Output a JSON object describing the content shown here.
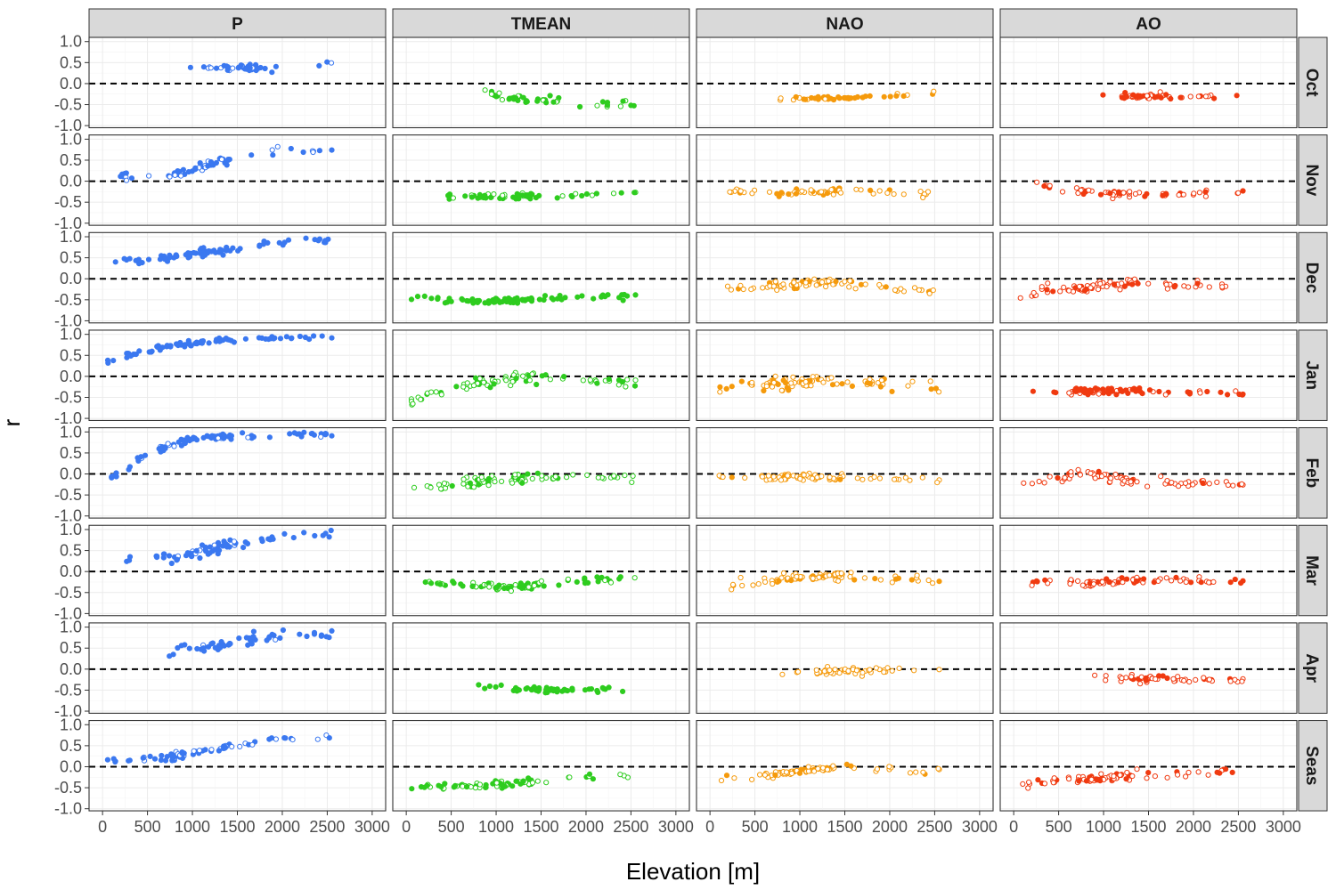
{
  "chart_data": {
    "type": "scatter",
    "layout": "facet_grid",
    "xlabel": "Elevation [m]",
    "ylabel": "r",
    "xlim": [
      -150,
      3150
    ],
    "ylim": [
      -1.05,
      1.1
    ],
    "x_ticks": [
      0,
      500,
      1000,
      1500,
      2000,
      2500,
      3000
    ],
    "y_ticks": [
      -1.0,
      -0.5,
      0.0,
      0.5,
      1.0
    ],
    "x_tick_labels": [
      "0",
      "500",
      "1000",
      "1500",
      "2000",
      "2500",
      "3000"
    ],
    "y_tick_labels": [
      "-1.0",
      "-0.5",
      "0.0",
      "0.5",
      "1.0"
    ],
    "reference_line": {
      "y": 0,
      "style": "dashed"
    },
    "grid": true,
    "point_style": {
      "filled": "significant",
      "open": "not significant"
    },
    "columns": [
      "P",
      "TMEAN",
      "NAO",
      "AO"
    ],
    "rows": [
      "Oct",
      "Nov",
      "Dec",
      "Jan",
      "Feb",
      "Mar",
      "Apr",
      "Seas"
    ],
    "colors": {
      "P": "#3b78f0",
      "TMEAN": "#2ecc1f",
      "NAO": "#f59a0c",
      "AO": "#f03a10"
    },
    "series": [
      {
        "col": "P",
        "row": "Oct",
        "trend": [
          [
            850,
            0.38
          ],
          [
            1900,
            0.38
          ],
          [
            2550,
            0.5
          ]
        ],
        "spread": 0.07,
        "x_range": [
          830,
          2550
        ],
        "n": 40,
        "open_frac": 0.25
      },
      {
        "col": "P",
        "row": "Nov",
        "trend": [
          [
            180,
            0.1
          ],
          [
            800,
            0.15
          ],
          [
            1300,
            0.45
          ],
          [
            1900,
            0.72
          ],
          [
            2550,
            0.75
          ]
        ],
        "spread": 0.08,
        "x_range": [
          180,
          2550
        ],
        "n": 60,
        "open_frac": 0.3
      },
      {
        "col": "P",
        "row": "Dec",
        "trend": [
          [
            50,
            0.42
          ],
          [
            700,
            0.5
          ],
          [
            1300,
            0.65
          ],
          [
            1900,
            0.85
          ],
          [
            2550,
            0.9
          ]
        ],
        "spread": 0.08,
        "x_range": [
          50,
          2550
        ],
        "n": 80,
        "open_frac": 0.0
      },
      {
        "col": "P",
        "row": "Jan",
        "trend": [
          [
            50,
            0.35
          ],
          [
            250,
            0.5
          ],
          [
            700,
            0.72
          ],
          [
            1300,
            0.85
          ],
          [
            2550,
            0.95
          ]
        ],
        "spread": 0.05,
        "x_range": [
          50,
          2550
        ],
        "n": 85,
        "open_frac": 0.0
      },
      {
        "col": "P",
        "row": "Feb",
        "trend": [
          [
            80,
            -0.1
          ],
          [
            250,
            0.05
          ],
          [
            500,
            0.5
          ],
          [
            1000,
            0.85
          ],
          [
            2550,
            0.95
          ]
        ],
        "spread": 0.06,
        "x_range": [
          80,
          2550
        ],
        "n": 85,
        "open_frac": 0.1
      },
      {
        "col": "P",
        "row": "Mar",
        "trend": [
          [
            200,
            0.3
          ],
          [
            900,
            0.35
          ],
          [
            1300,
            0.6
          ],
          [
            1900,
            0.8
          ],
          [
            2550,
            0.88
          ]
        ],
        "spread": 0.1,
        "x_range": [
          200,
          2550
        ],
        "n": 75,
        "open_frac": 0.12
      },
      {
        "col": "P",
        "row": "Apr",
        "trend": [
          [
            700,
            0.4
          ],
          [
            1300,
            0.55
          ],
          [
            1900,
            0.78
          ],
          [
            2550,
            0.82
          ]
        ],
        "spread": 0.1,
        "x_range": [
          700,
          2550
        ],
        "n": 55,
        "open_frac": 0.08
      },
      {
        "col": "P",
        "row": "Seas",
        "trend": [
          [
            50,
            0.1
          ],
          [
            800,
            0.25
          ],
          [
            1300,
            0.45
          ],
          [
            1900,
            0.65
          ],
          [
            2550,
            0.75
          ]
        ],
        "spread": 0.07,
        "x_range": [
          50,
          2550
        ],
        "n": 75,
        "open_frac": 0.25
      },
      {
        "col": "TMEAN",
        "row": "Oct",
        "trend": [
          [
            800,
            -0.1
          ],
          [
            1100,
            -0.35
          ],
          [
            2550,
            -0.5
          ]
        ],
        "spread": 0.08,
        "x_range": [
          800,
          2550
        ],
        "n": 45,
        "open_frac": 0.3
      },
      {
        "col": "TMEAN",
        "row": "Nov",
        "trend": [
          [
            200,
            -0.15
          ],
          [
            300,
            -0.3
          ],
          [
            600,
            -0.38
          ],
          [
            2550,
            -0.3
          ]
        ],
        "spread": 0.07,
        "x_range": [
          200,
          2550
        ],
        "n": 60,
        "open_frac": 0.3
      },
      {
        "col": "TMEAN",
        "row": "Dec",
        "trend": [
          [
            50,
            -0.45
          ],
          [
            800,
            -0.55
          ],
          [
            1400,
            -0.5
          ],
          [
            2550,
            -0.4
          ]
        ],
        "spread": 0.06,
        "x_range": [
          50,
          2550
        ],
        "n": 80,
        "open_frac": 0.0
      },
      {
        "col": "TMEAN",
        "row": "Jan",
        "trend": [
          [
            50,
            -0.6
          ],
          [
            250,
            -0.4
          ],
          [
            800,
            -0.15
          ],
          [
            1400,
            0.0
          ],
          [
            2550,
            -0.15
          ]
        ],
        "spread": 0.12,
        "x_range": [
          50,
          2550
        ],
        "n": 80,
        "open_frac": 0.7
      },
      {
        "col": "TMEAN",
        "row": "Feb",
        "trend": [
          [
            50,
            -0.45
          ],
          [
            250,
            -0.3
          ],
          [
            700,
            -0.2
          ],
          [
            1400,
            -0.1
          ],
          [
            2550,
            -0.05
          ]
        ],
        "spread": 0.1,
        "x_range": [
          50,
          2550
        ],
        "n": 80,
        "open_frac": 0.7
      },
      {
        "col": "TMEAN",
        "row": "Mar",
        "trend": [
          [
            200,
            -0.25
          ],
          [
            700,
            -0.35
          ],
          [
            1400,
            -0.35
          ],
          [
            2550,
            -0.1
          ]
        ],
        "spread": 0.07,
        "x_range": [
          200,
          2550
        ],
        "n": 80,
        "open_frac": 0.35
      },
      {
        "col": "TMEAN",
        "row": "Apr",
        "trend": [
          [
            800,
            -0.4
          ],
          [
            1200,
            -0.5
          ],
          [
            2550,
            -0.5
          ]
        ],
        "spread": 0.06,
        "x_range": [
          800,
          2550
        ],
        "n": 50,
        "open_frac": 0.0
      },
      {
        "col": "TMEAN",
        "row": "Seas",
        "trend": [
          [
            50,
            -0.5
          ],
          [
            800,
            -0.45
          ],
          [
            1500,
            -0.35
          ],
          [
            2550,
            -0.2
          ]
        ],
        "spread": 0.07,
        "x_range": [
          50,
          2550
        ],
        "n": 75,
        "open_frac": 0.5
      },
      {
        "col": "NAO",
        "row": "Oct",
        "trend": [
          [
            750,
            -0.35
          ],
          [
            1500,
            -0.35
          ],
          [
            2550,
            -0.25
          ]
        ],
        "spread": 0.04,
        "x_range": [
          750,
          2550
        ],
        "n": 45,
        "open_frac": 0.35
      },
      {
        "col": "NAO",
        "row": "Nov",
        "trend": [
          [
            180,
            -0.2
          ],
          [
            800,
            -0.3
          ],
          [
            1400,
            -0.22
          ],
          [
            2550,
            -0.3
          ]
        ],
        "spread": 0.06,
        "x_range": [
          180,
          2550
        ],
        "n": 60,
        "open_frac": 0.75
      },
      {
        "col": "NAO",
        "row": "Dec",
        "trend": [
          [
            50,
            -0.3
          ],
          [
            800,
            -0.15
          ],
          [
            1400,
            -0.1
          ],
          [
            2550,
            -0.3
          ]
        ],
        "spread": 0.08,
        "x_range": [
          50,
          2550
        ],
        "n": 80,
        "open_frac": 0.75
      },
      {
        "col": "NAO",
        "row": "Jan",
        "trend": [
          [
            50,
            -0.3
          ],
          [
            800,
            -0.15
          ],
          [
            1400,
            -0.1
          ],
          [
            2550,
            -0.25
          ]
        ],
        "spread": 0.12,
        "x_range": [
          50,
          2550
        ],
        "n": 80,
        "open_frac": 0.7
      },
      {
        "col": "NAO",
        "row": "Feb",
        "trend": [
          [
            50,
            -0.05
          ],
          [
            1400,
            -0.1
          ],
          [
            2550,
            -0.15
          ]
        ],
        "spread": 0.07,
        "x_range": [
          50,
          2550
        ],
        "n": 80,
        "open_frac": 0.9
      },
      {
        "col": "NAO",
        "row": "Mar",
        "trend": [
          [
            200,
            -0.35
          ],
          [
            800,
            -0.2
          ],
          [
            1400,
            -0.1
          ],
          [
            2550,
            -0.2
          ]
        ],
        "spread": 0.08,
        "x_range": [
          200,
          2550
        ],
        "n": 80,
        "open_frac": 0.85
      },
      {
        "col": "NAO",
        "row": "Apr",
        "trend": [
          [
            800,
            -0.05
          ],
          [
            1400,
            -0.05
          ],
          [
            2550,
            0.0
          ]
        ],
        "spread": 0.07,
        "x_range": [
          800,
          2550
        ],
        "n": 50,
        "open_frac": 1.0
      },
      {
        "col": "NAO",
        "row": "Seas",
        "trend": [
          [
            50,
            -0.35
          ],
          [
            800,
            -0.15
          ],
          [
            1400,
            -0.05
          ],
          [
            2550,
            -0.1
          ]
        ],
        "spread": 0.08,
        "x_range": [
          50,
          2550
        ],
        "n": 75,
        "open_frac": 0.8
      },
      {
        "col": "AO",
        "row": "Oct",
        "trend": [
          [
            850,
            -0.25
          ],
          [
            1400,
            -0.32
          ],
          [
            2550,
            -0.28
          ]
        ],
        "spread": 0.05,
        "x_range": [
          850,
          2550
        ],
        "n": 45,
        "open_frac": 0.5
      },
      {
        "col": "AO",
        "row": "Nov",
        "trend": [
          [
            180,
            0.0
          ],
          [
            500,
            -0.2
          ],
          [
            1400,
            -0.3
          ],
          [
            2550,
            -0.3
          ]
        ],
        "spread": 0.06,
        "x_range": [
          180,
          2550
        ],
        "n": 60,
        "open_frac": 0.65
      },
      {
        "col": "AO",
        "row": "Dec",
        "trend": [
          [
            50,
            -0.5
          ],
          [
            250,
            -0.3
          ],
          [
            800,
            -0.2
          ],
          [
            1400,
            -0.1
          ],
          [
            2550,
            -0.2
          ]
        ],
        "spread": 0.08,
        "x_range": [
          50,
          2550
        ],
        "n": 80,
        "open_frac": 0.75
      },
      {
        "col": "AO",
        "row": "Jan",
        "trend": [
          [
            50,
            -0.35
          ],
          [
            1400,
            -0.35
          ],
          [
            2550,
            -0.4
          ]
        ],
        "spread": 0.06,
        "x_range": [
          50,
          2550
        ],
        "n": 85,
        "open_frac": 0.2
      },
      {
        "col": "AO",
        "row": "Feb",
        "trend": [
          [
            50,
            -0.25
          ],
          [
            800,
            0.0
          ],
          [
            1400,
            -0.2
          ],
          [
            2550,
            -0.2
          ]
        ],
        "spread": 0.1,
        "x_range": [
          50,
          2550
        ],
        "n": 80,
        "open_frac": 0.85
      },
      {
        "col": "AO",
        "row": "Mar",
        "trend": [
          [
            200,
            -0.25
          ],
          [
            800,
            -0.3
          ],
          [
            1400,
            -0.2
          ],
          [
            2550,
            -0.25
          ]
        ],
        "spread": 0.08,
        "x_range": [
          200,
          2550
        ],
        "n": 80,
        "open_frac": 0.65
      },
      {
        "col": "AO",
        "row": "Apr",
        "trend": [
          [
            900,
            -0.2
          ],
          [
            1400,
            -0.22
          ],
          [
            2550,
            -0.25
          ]
        ],
        "spread": 0.07,
        "x_range": [
          900,
          2550
        ],
        "n": 50,
        "open_frac": 0.6
      },
      {
        "col": "AO",
        "row": "Seas",
        "trend": [
          [
            50,
            -0.4
          ],
          [
            800,
            -0.3
          ],
          [
            1400,
            -0.2
          ],
          [
            2550,
            -0.1
          ]
        ],
        "spread": 0.09,
        "x_range": [
          50,
          2550
        ],
        "n": 75,
        "open_frac": 0.7
      }
    ]
  }
}
